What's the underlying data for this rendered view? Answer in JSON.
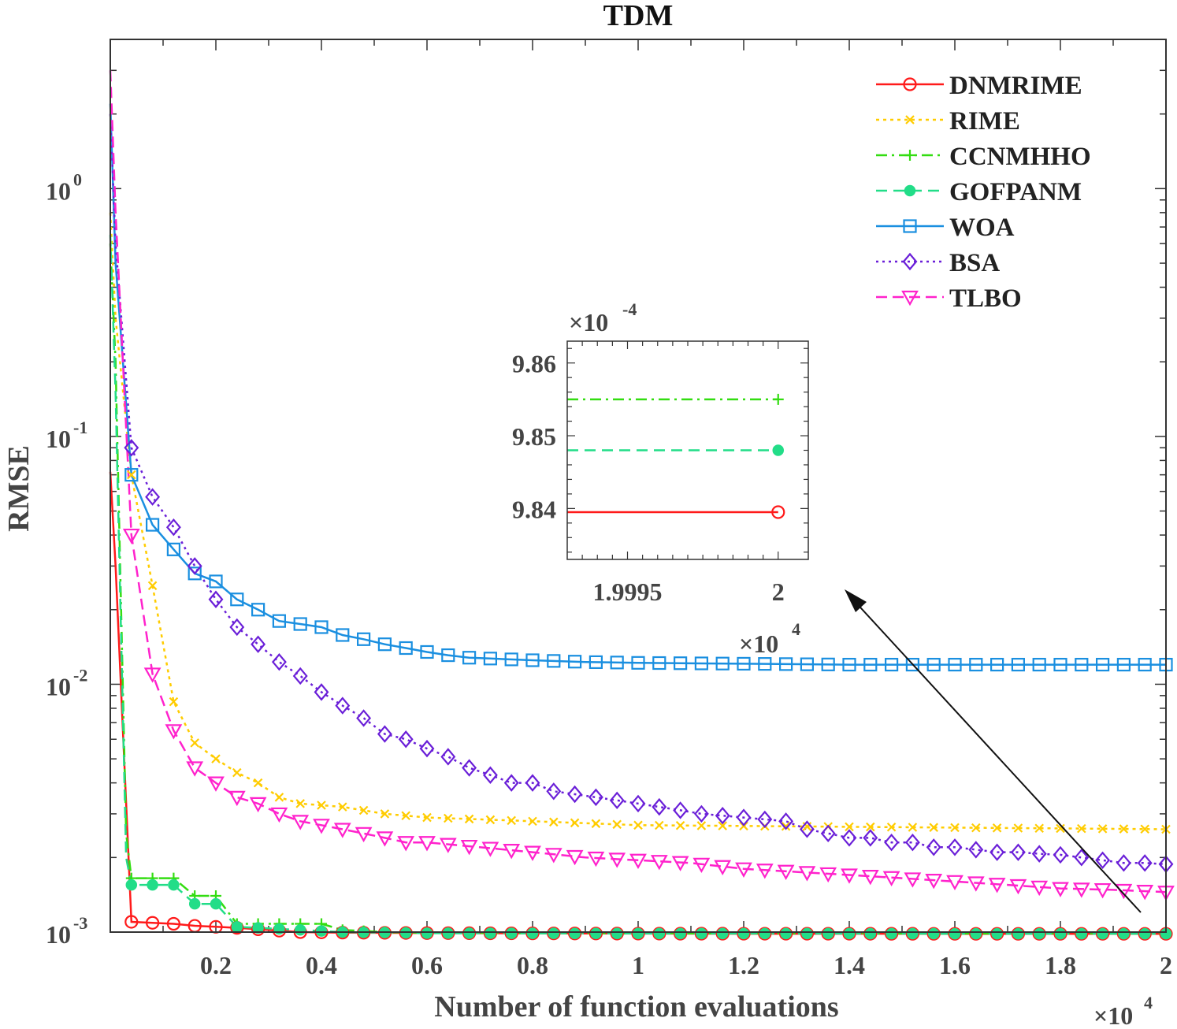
{
  "chart_data": {
    "type": "line",
    "title": "TDM",
    "xlabel": "Number of function evaluations",
    "ylabel": "RMSE",
    "x_multiplier": "×10",
    "x_multiplier_exp": "4",
    "yscale": "log",
    "xlim": [
      0,
      20000
    ],
    "ylim": [
      0.001,
      4
    ],
    "x_ticks": [
      {
        "value": 2000,
        "label": "0.2"
      },
      {
        "value": 4000,
        "label": "0.4"
      },
      {
        "value": 6000,
        "label": "0.6"
      },
      {
        "value": 8000,
        "label": "0.8"
      },
      {
        "value": 10000,
        "label": "1"
      },
      {
        "value": 12000,
        "label": "1.2"
      },
      {
        "value": 14000,
        "label": "1.4"
      },
      {
        "value": 16000,
        "label": "1.6"
      },
      {
        "value": 18000,
        "label": "1.8"
      },
      {
        "value": 20000,
        "label": "2"
      }
    ],
    "y_ticks": [
      {
        "value": 1,
        "base": "10",
        "exp": "0"
      },
      {
        "value": 0.1,
        "base": "10",
        "exp": "-1"
      },
      {
        "value": 0.01,
        "base": "10",
        "exp": "-2"
      },
      {
        "value": 0.001,
        "base": "10",
        "exp": "-3"
      }
    ],
    "legend_position": "top-right",
    "series": [
      {
        "name": "DNMRIME",
        "color": "#ff1a1a",
        "dash": "",
        "marker": "circle",
        "x": [
          0,
          100,
          400,
          800,
          1200,
          1600,
          2000,
          2400,
          3000,
          3600,
          4400,
          6000,
          8000,
          10000,
          12000,
          14000,
          16000,
          18000,
          20000
        ],
        "values": [
          0.072,
          0.03,
          0.0011,
          0.00109,
          0.00108,
          0.00106,
          0.00105,
          0.00104,
          0.00102,
          0.001,
          0.000995,
          0.000991,
          0.000988,
          0.000986,
          0.000985,
          0.000985,
          0.000984,
          0.000984,
          0.000984
        ]
      },
      {
        "name": "RIME",
        "color": "#ffcc00",
        "dash": "4,5",
        "marker": "x",
        "x": [
          0,
          100,
          400,
          800,
          1200,
          1600,
          2000,
          2400,
          2800,
          3200,
          3600,
          4400,
          5200,
          6000,
          7000,
          8000,
          9000,
          10000,
          12000,
          14000,
          16000,
          18000,
          20000
        ],
        "values": [
          0.8,
          0.3,
          0.07,
          0.025,
          0.0085,
          0.0058,
          0.005,
          0.0044,
          0.004,
          0.0035,
          0.0033,
          0.0032,
          0.003,
          0.0029,
          0.00285,
          0.0028,
          0.00275,
          0.0027,
          0.00268,
          0.00266,
          0.00264,
          0.00262,
          0.0026
        ]
      },
      {
        "name": "CCNMHHO",
        "color": "#33dd11",
        "dash": "14,6,3,6",
        "marker": "plus",
        "x": [
          0,
          100,
          300,
          400,
          800,
          1200,
          1600,
          2000,
          2400,
          2800,
          3200,
          3600,
          4000,
          4400,
          5200,
          6000,
          8000,
          10000,
          12000,
          14000,
          16000,
          18000,
          20000
        ],
        "values": [
          0.6,
          0.2,
          0.0025,
          0.00165,
          0.00165,
          0.00165,
          0.0014,
          0.0014,
          0.00108,
          0.00108,
          0.00108,
          0.00108,
          0.00108,
          0.00102,
          0.001,
          0.000993,
          0.00099,
          0.000988,
          0.000987,
          0.000987,
          0.000986,
          0.000986,
          0.000986
        ]
      },
      {
        "name": "GOFPANM",
        "color": "#22dd88",
        "dash": "14,8",
        "marker": "asterisk",
        "x": [
          0,
          100,
          300,
          400,
          800,
          1200,
          1600,
          2000,
          2400,
          2800,
          3200,
          3600,
          4400,
          5200,
          6000,
          8000,
          10000,
          12000,
          14000,
          16000,
          18000,
          20000
        ],
        "values": [
          0.65,
          0.15,
          0.002,
          0.00155,
          0.00155,
          0.00155,
          0.0013,
          0.0013,
          0.00105,
          0.00104,
          0.00103,
          0.00102,
          0.001,
          0.000995,
          0.00099,
          0.000988,
          0.000987,
          0.000986,
          0.000986,
          0.000985,
          0.000985,
          0.000985
        ]
      },
      {
        "name": "WOA",
        "color": "#1a8fe0",
        "dash": "",
        "marker": "square",
        "x": [
          0,
          100,
          400,
          800,
          1200,
          1600,
          2000,
          2400,
          2800,
          3200,
          3600,
          4000,
          4400,
          4800,
          5200,
          5600,
          6000,
          6400,
          6800,
          7200,
          8000,
          9000,
          10000,
          12000,
          14000,
          16000,
          18000,
          20000
        ],
        "values": [
          2.2,
          0.5,
          0.07,
          0.044,
          0.035,
          0.028,
          0.026,
          0.022,
          0.02,
          0.018,
          0.0175,
          0.017,
          0.0158,
          0.0152,
          0.0145,
          0.014,
          0.0135,
          0.0131,
          0.0128,
          0.0127,
          0.0125,
          0.0123,
          0.0122,
          0.0121,
          0.012,
          0.012,
          0.012,
          0.012
        ]
      },
      {
        "name": "BSA",
        "color": "#6a1fd8",
        "dash": "3,5",
        "marker": "diamond",
        "x": [
          0,
          100,
          400,
          800,
          1200,
          1600,
          2000,
          2400,
          2800,
          3200,
          3600,
          4000,
          4400,
          4800,
          5200,
          5600,
          6000,
          6400,
          6800,
          7200,
          7600,
          8000,
          8400,
          8800,
          9200,
          9600,
          10000,
          10400,
          10800,
          11200,
          11600,
          12000,
          12400,
          12800,
          13200,
          13600,
          14000,
          14400,
          14800,
          15200,
          15600,
          16000,
          16400,
          16800,
          17200,
          17600,
          18000,
          18400,
          18800,
          19200,
          19600,
          20000
        ],
        "values": [
          2.0,
          0.6,
          0.09,
          0.057,
          0.043,
          0.03,
          0.022,
          0.017,
          0.0145,
          0.0123,
          0.0108,
          0.0093,
          0.0082,
          0.0073,
          0.0063,
          0.006,
          0.0055,
          0.0051,
          0.0046,
          0.0043,
          0.004,
          0.004,
          0.0037,
          0.0036,
          0.0035,
          0.0034,
          0.0033,
          0.0032,
          0.0031,
          0.003,
          0.00295,
          0.0029,
          0.00285,
          0.0028,
          0.0026,
          0.0025,
          0.0024,
          0.0024,
          0.0023,
          0.0023,
          0.0022,
          0.0022,
          0.00215,
          0.0021,
          0.0021,
          0.00207,
          0.00205,
          0.002,
          0.00195,
          0.0019,
          0.0019,
          0.00188
        ]
      },
      {
        "name": "TLBO",
        "color": "#ff22cc",
        "dash": "14,7",
        "marker": "triangle-down",
        "x": [
          0,
          100,
          400,
          800,
          1200,
          1600,
          2000,
          2400,
          2800,
          3200,
          3600,
          4000,
          4400,
          4800,
          5200,
          5600,
          6000,
          7000,
          8000,
          9000,
          10000,
          11000,
          12000,
          13000,
          14000,
          15000,
          16000,
          17000,
          18000,
          19000,
          20000
        ],
        "values": [
          3.0,
          0.8,
          0.04,
          0.011,
          0.0065,
          0.0046,
          0.004,
          0.0035,
          0.0033,
          0.003,
          0.0028,
          0.0027,
          0.0026,
          0.0025,
          0.0024,
          0.0023,
          0.0023,
          0.0022,
          0.0021,
          0.002,
          0.00195,
          0.0019,
          0.0018,
          0.00175,
          0.0017,
          0.00165,
          0.0016,
          0.00155,
          0.0015,
          0.00148,
          0.00145
        ]
      }
    ],
    "inset": {
      "y_multiplier": "×10",
      "y_multiplier_exp": "-4",
      "x_multiplier": "×10",
      "x_multiplier_exp": "4",
      "xlim": [
        1.9993,
        2.0001
      ],
      "ylim": [
        9.833,
        9.863
      ],
      "x_ticks": [
        {
          "value": 1.9995,
          "label": "1.9995"
        },
        {
          "value": 2.0,
          "label": "2"
        }
      ],
      "y_ticks": [
        {
          "value": 9.84,
          "label": "9.84"
        },
        {
          "value": 9.85,
          "label": "9.85"
        },
        {
          "value": 9.86,
          "label": "9.86"
        }
      ],
      "series": [
        {
          "name": "CCNMHHO",
          "value": 9.855
        },
        {
          "name": "GOFPANM",
          "value": 9.848
        },
        {
          "name": "DNMRIME",
          "value": 9.8395
        }
      ]
    }
  }
}
